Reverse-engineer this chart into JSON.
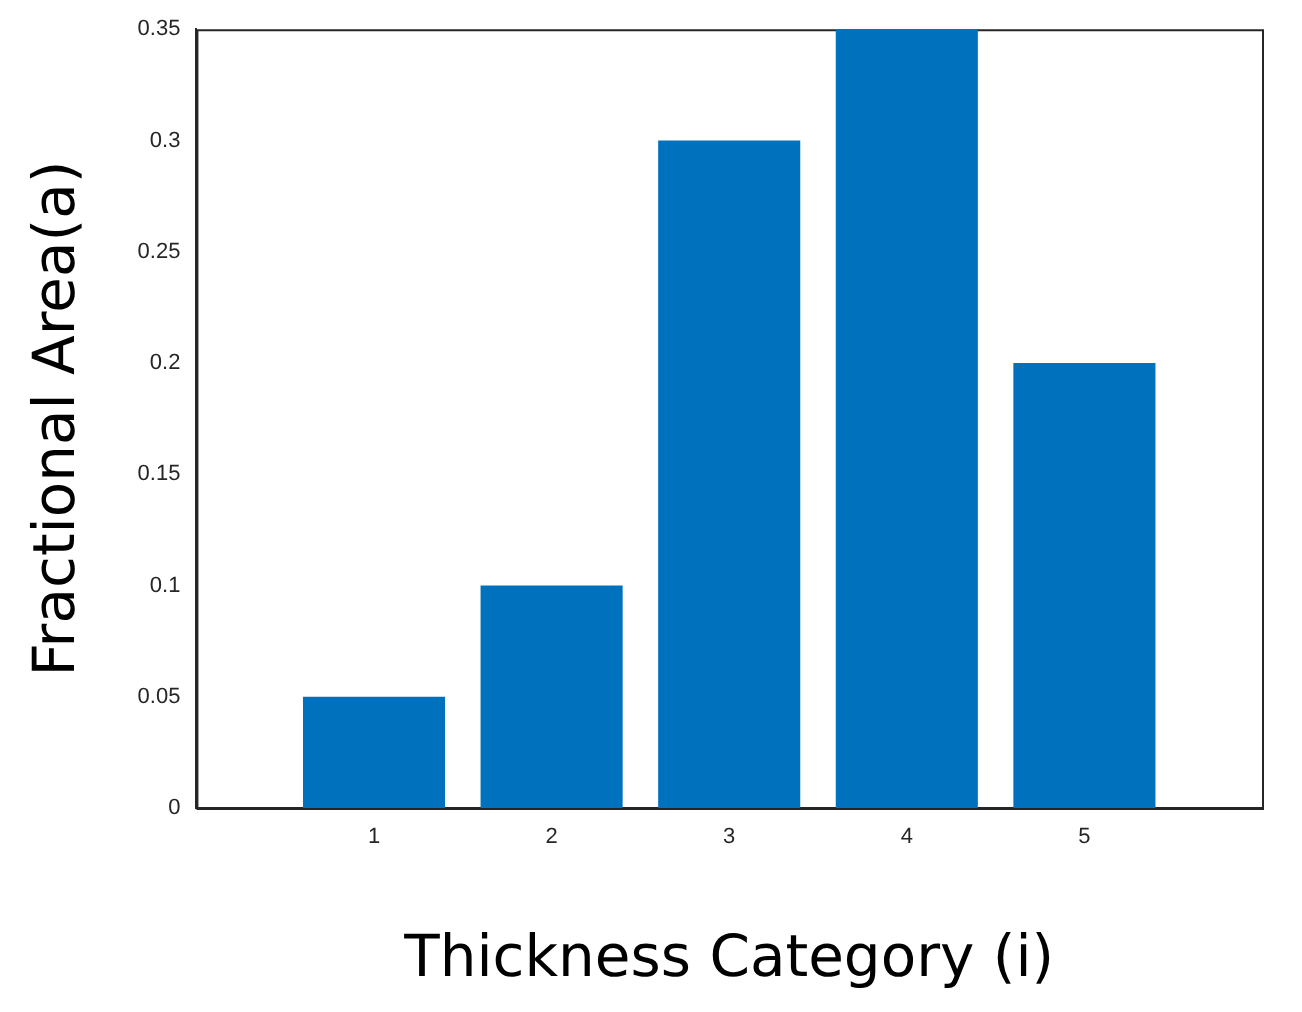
{
  "chart_data": {
    "type": "bar",
    "xlabel": "Thickness Category (i)",
    "ylabel": "Fractional Area(a)",
    "x": [
      1,
      2,
      3,
      4,
      5
    ],
    "values": [
      0.05,
      0.1,
      0.3,
      0.35,
      0.2
    ],
    "color": "#0072bd",
    "xlim": [
      0,
      6
    ],
    "xticks": [
      1,
      2,
      3,
      4,
      5
    ],
    "ylim": [
      0,
      0.35
    ],
    "yticks": [
      0,
      0.05,
      0.1,
      0.15,
      0.2,
      0.25,
      0.3,
      0.35
    ],
    "grid": false,
    "legend": false
  }
}
